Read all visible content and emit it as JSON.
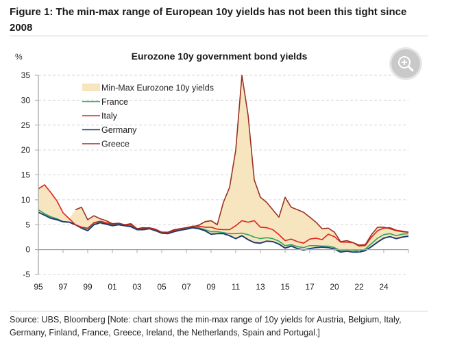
{
  "figure": {
    "title": "Figure 1: The min-max range of European 10y yields has not been this tight since 2008",
    "source": "Source: UBS, Bloomberg [Note: chart shows the min-max range of 10y yields for Austria, Belgium, Italy, Germany, Finland, France, Greece, Ireland, the Netherlands, Spain and Portugal.]",
    "zoom_button": "zoom-in-icon"
  },
  "chart_data": {
    "type": "line",
    "title": "Eurozone 10y government bond yields",
    "ylabel": "%",
    "xlabel": "",
    "ylim": [
      -5,
      35
    ],
    "xlim": [
      1995,
      2025
    ],
    "yticks": [
      -5,
      0,
      5,
      10,
      15,
      20,
      25,
      30,
      35
    ],
    "xtick_labels": [
      "95",
      "97",
      "99",
      "01",
      "03",
      "05",
      "07",
      "09",
      "11",
      "13",
      "15",
      "17",
      "20",
      "22",
      "24"
    ],
    "xtick_years": [
      1995,
      1997,
      1999,
      2001,
      2003,
      2005,
      2007,
      2009,
      2011,
      2013,
      2015,
      2017,
      2020,
      2022,
      2024
    ],
    "grid": "horizontal dashed",
    "legend_position": "top-left",
    "legend": [
      "Min-Max Eurozone 10y yields",
      "France",
      "Italy",
      "Germany",
      "Greece"
    ],
    "colors": {
      "range_fill": "#f7e5bf",
      "France": "#2ea55a",
      "Italy": "#e0211c",
      "Germany": "#1f3a76",
      "Greece": "#9a3223"
    },
    "x": [
      1995.0,
      1995.5,
      1996.0,
      1996.5,
      1997.0,
      1997.5,
      1998.0,
      1998.5,
      1999.0,
      1999.5,
      2000.0,
      2000.5,
      2001.0,
      2001.5,
      2002.0,
      2002.5,
      2003.0,
      2003.5,
      2004.0,
      2004.5,
      2005.0,
      2005.5,
      2006.0,
      2006.5,
      2007.0,
      2007.5,
      2008.0,
      2008.5,
      2009.0,
      2009.5,
      2010.0,
      2010.5,
      2011.0,
      2011.5,
      2012.0,
      2012.5,
      2013.0,
      2013.5,
      2014.0,
      2014.5,
      2015.0,
      2015.5,
      2016.0,
      2016.5,
      2017.0,
      2017.5,
      2018.0,
      2018.5,
      2019.0,
      2019.5,
      2020.0,
      2020.5,
      2021.0,
      2021.5,
      2022.0,
      2022.5,
      2023.0,
      2023.5,
      2024.0,
      2024.5,
      2025.0
    ],
    "range_max": [
      12.5,
      13.2,
      11.5,
      10.0,
      7.5,
      6.2,
      8.0,
      8.5,
      6.0,
      6.8,
      6.2,
      5.8,
      5.2,
      5.3,
      5.0,
      5.2,
      4.2,
      4.4,
      4.3,
      4.0,
      3.5,
      3.5,
      4.0,
      4.2,
      4.5,
      4.7,
      5.0,
      5.8,
      6.0,
      5.2,
      9.5,
      12.5,
      20.0,
      35.0,
      27.0,
      14.0,
      10.5,
      9.5,
      8.0,
      6.5,
      10.5,
      8.5,
      8.0,
      7.5,
      6.5,
      5.5,
      4.2,
      4.3,
      3.5,
      1.6,
      1.8,
      1.4,
      0.9,
      1.0,
      3.0,
      4.5,
      4.5,
      4.2,
      3.8,
      3.6,
      3.5
    ],
    "series": [
      {
        "name": "France",
        "values": [
          8.0,
          7.2,
          6.6,
          6.2,
          5.6,
          5.5,
          5.0,
          4.5,
          4.2,
          5.3,
          5.6,
          5.3,
          5.0,
          5.2,
          4.9,
          4.8,
          4.1,
          4.2,
          4.3,
          4.0,
          3.4,
          3.3,
          3.8,
          4.0,
          4.3,
          4.5,
          4.4,
          4.0,
          3.6,
          3.6,
          3.4,
          3.2,
          3.2,
          3.3,
          3.0,
          2.5,
          2.2,
          2.4,
          2.2,
          1.7,
          0.8,
          1.0,
          0.6,
          0.4,
          0.8,
          0.8,
          0.7,
          0.7,
          0.4,
          -0.2,
          0.0,
          -0.1,
          -0.3,
          0.1,
          1.2,
          2.3,
          3.0,
          3.2,
          2.8,
          3.1,
          3.2
        ]
      },
      {
        "name": "Italy",
        "values": [
          12.2,
          13.0,
          11.5,
          9.8,
          7.4,
          6.2,
          5.0,
          4.5,
          4.3,
          5.4,
          5.7,
          5.4,
          5.1,
          5.3,
          5.0,
          5.0,
          4.2,
          4.3,
          4.4,
          4.1,
          3.5,
          3.4,
          3.9,
          4.1,
          4.4,
          4.7,
          4.7,
          4.5,
          4.5,
          4.1,
          4.0,
          4.0,
          4.8,
          5.8,
          5.5,
          5.8,
          4.5,
          4.4,
          4.0,
          3.0,
          1.8,
          2.1,
          1.6,
          1.3,
          2.1,
          2.3,
          2.0,
          3.1,
          2.6,
          1.5,
          1.5,
          1.4,
          0.7,
          0.8,
          2.5,
          3.8,
          4.3,
          4.4,
          3.9,
          3.7,
          3.5
        ]
      },
      {
        "name": "Germany",
        "values": [
          7.5,
          6.9,
          6.3,
          6.0,
          5.6,
          5.5,
          5.0,
          4.3,
          3.8,
          5.0,
          5.4,
          5.1,
          4.8,
          5.0,
          4.8,
          4.6,
          4.0,
          4.0,
          4.2,
          3.8,
          3.3,
          3.2,
          3.6,
          3.9,
          4.1,
          4.4,
          4.2,
          3.8,
          3.1,
          3.2,
          3.2,
          2.8,
          2.2,
          2.8,
          2.0,
          1.4,
          1.3,
          1.7,
          1.6,
          1.1,
          0.3,
          0.7,
          0.2,
          -0.1,
          0.2,
          0.4,
          0.5,
          0.4,
          0.1,
          -0.5,
          -0.3,
          -0.5,
          -0.5,
          -0.2,
          0.6,
          1.5,
          2.3,
          2.6,
          2.2,
          2.5,
          2.7
        ]
      },
      {
        "name": "Greece",
        "values": [
          null,
          null,
          null,
          null,
          null,
          null,
          8.0,
          8.5,
          6.0,
          6.8,
          6.2,
          5.8,
          5.2,
          5.3,
          5.0,
          5.2,
          4.2,
          4.4,
          4.3,
          4.0,
          3.5,
          3.5,
          4.0,
          4.2,
          4.4,
          4.6,
          4.9,
          5.6,
          5.8,
          5.0,
          9.5,
          12.5,
          20.0,
          35.0,
          27.0,
          14.0,
          10.5,
          9.5,
          8.0,
          6.5,
          10.5,
          8.5,
          8.0,
          7.5,
          6.5,
          5.5,
          4.2,
          4.3,
          3.5,
          1.6,
          1.8,
          1.4,
          0.9,
          1.0,
          3.0,
          4.5,
          4.5,
          4.2,
          3.8,
          3.6,
          3.5
        ]
      }
    ],
    "range_min": [
      7.5,
      6.9,
      6.3,
      6.0,
      5.6,
      5.5,
      5.0,
      4.3,
      3.8,
      5.0,
      5.4,
      5.1,
      4.8,
      5.0,
      4.8,
      4.6,
      4.0,
      4.0,
      4.2,
      3.8,
      3.3,
      3.2,
      3.6,
      3.9,
      4.1,
      4.4,
      4.2,
      3.8,
      3.1,
      3.2,
      3.2,
      2.8,
      2.2,
      2.8,
      2.0,
      1.4,
      1.3,
      1.7,
      1.6,
      1.1,
      0.3,
      0.7,
      0.2,
      -0.1,
      0.2,
      0.4,
      0.5,
      0.4,
      0.1,
      -0.5,
      -0.3,
      -0.5,
      -0.5,
      -0.2,
      0.6,
      1.5,
      2.3,
      2.6,
      2.2,
      2.5,
      2.7
    ]
  }
}
